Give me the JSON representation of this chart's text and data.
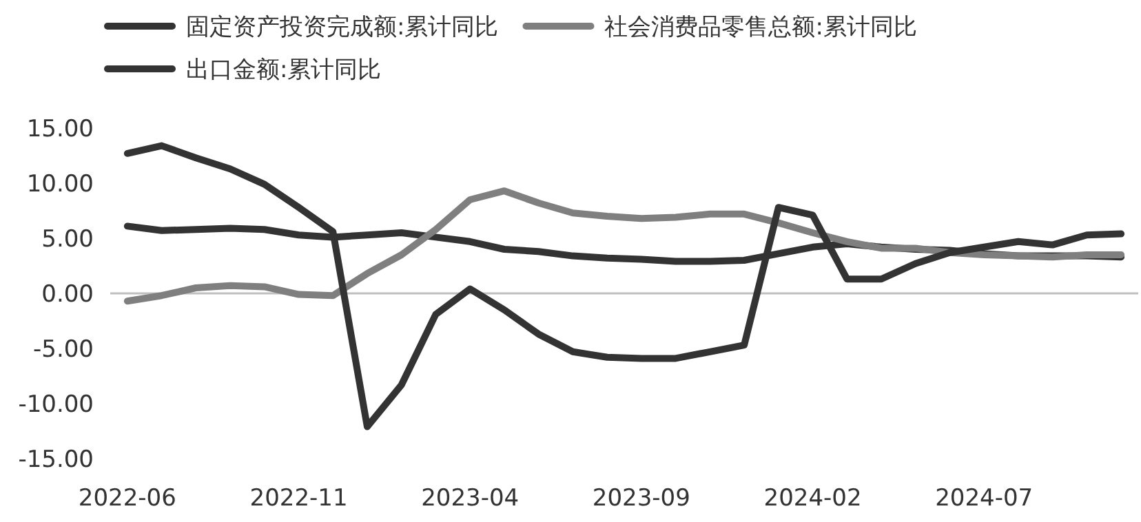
{
  "chart_data": {
    "type": "line",
    "categories": [
      "2022-06",
      null,
      null,
      null,
      null,
      "2022-11",
      null,
      null,
      null,
      null,
      "2023-04",
      null,
      null,
      null,
      null,
      "2023-09",
      null,
      null,
      null,
      null,
      "2024-02",
      null,
      null,
      null,
      null,
      "2024-07",
      null,
      null,
      null,
      null
    ],
    "series": [
      {
        "name": "固定资产投资完成额:累计同比",
        "color": "#333333",
        "values": [
          6.1,
          5.7,
          5.8,
          5.9,
          5.8,
          5.3,
          5.1,
          5.3,
          5.5,
          5.1,
          4.7,
          4.0,
          3.8,
          3.4,
          3.2,
          3.1,
          2.9,
          2.9,
          3.0,
          3.6,
          4.2,
          4.5,
          4.2,
          4.0,
          3.9,
          3.6,
          3.4,
          3.4,
          3.4,
          3.3
        ]
      },
      {
        "name": "社会消费品零售总额:累计同比",
        "color": "#7f7f7f",
        "values": [
          -0.7,
          -0.2,
          0.5,
          0.7,
          0.6,
          -0.1,
          -0.2,
          1.8,
          3.5,
          5.8,
          8.5,
          9.3,
          8.2,
          7.3,
          7.0,
          6.8,
          6.9,
          7.2,
          7.2,
          6.4,
          5.5,
          4.7,
          4.1,
          4.1,
          3.7,
          3.5,
          3.4,
          3.3,
          3.5,
          3.5
        ]
      },
      {
        "name": "出口金额:累计同比",
        "color": "#333333",
        "values": [
          12.7,
          13.4,
          12.3,
          11.3,
          9.9,
          7.8,
          5.6,
          -12.1,
          -8.3,
          -1.9,
          0.4,
          -1.5,
          -3.7,
          -5.3,
          -5.8,
          -5.9,
          -5.9,
          -5.3,
          -4.7,
          7.8,
          7.1,
          1.3,
          1.3,
          2.7,
          3.7,
          4.2,
          4.7,
          4.4,
          5.3,
          5.4
        ]
      }
    ],
    "ylim": [
      -15,
      15
    ],
    "yticks": [
      {
        "value": -15,
        "label": "-15.00"
      },
      {
        "value": -10,
        "label": "-10.00"
      },
      {
        "value": -5,
        "label": "-5.00"
      },
      {
        "value": 0,
        "label": "0.00"
      },
      {
        "value": 5,
        "label": "5.00"
      },
      {
        "value": 10,
        "label": "10.00"
      },
      {
        "value": 15,
        "label": "15.00"
      }
    ],
    "ref_lines": [
      {
        "axis": "y",
        "value": 0,
        "color": "#bfbfbf"
      }
    ],
    "grid": false,
    "legend": "top",
    "marker": "none",
    "line_style": "solid"
  }
}
